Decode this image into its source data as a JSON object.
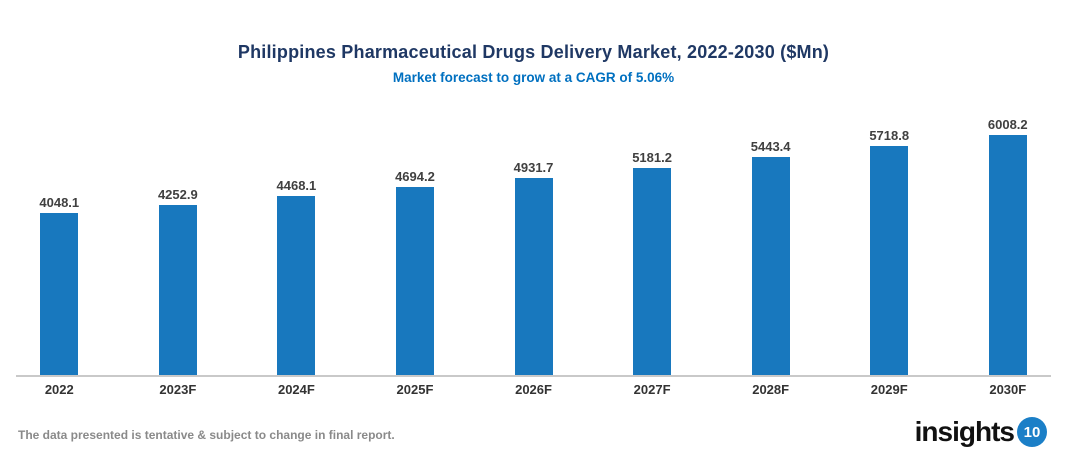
{
  "chart_data": {
    "type": "bar",
    "title": "Philippines Pharmaceutical Drugs Delivery Market, 2022-2030 ($Mn)",
    "subtitle": "Market forecast to grow at a CAGR of 5.06%",
    "categories": [
      "2022",
      "2023F",
      "2024F",
      "2025F",
      "2026F",
      "2027F",
      "2028F",
      "2029F",
      "2030F"
    ],
    "values": [
      4048.1,
      4252.9,
      4468.1,
      4694.2,
      4931.7,
      5181.2,
      5443.4,
      5718.8,
      6008.2
    ],
    "xlabel": "",
    "ylabel": "",
    "ylim": [
      0,
      6200
    ],
    "grid": false,
    "legend_position": "none",
    "value_labels_shown": true,
    "bar_color": "#1878BE",
    "title_color": "#1F3864",
    "subtitle_color": "#0070C0",
    "value_label_color": "#404040",
    "tick_label_color": "#333333",
    "axis_line_color": "#C9C9C9"
  },
  "footer": {
    "disclaimer": "The data presented is tentative & subject to change in final report.",
    "logo_text": "insights",
    "logo_badge": "10",
    "logo_badge_color": "#1B7FC7",
    "disclaimer_color": "#8A8A8A"
  }
}
